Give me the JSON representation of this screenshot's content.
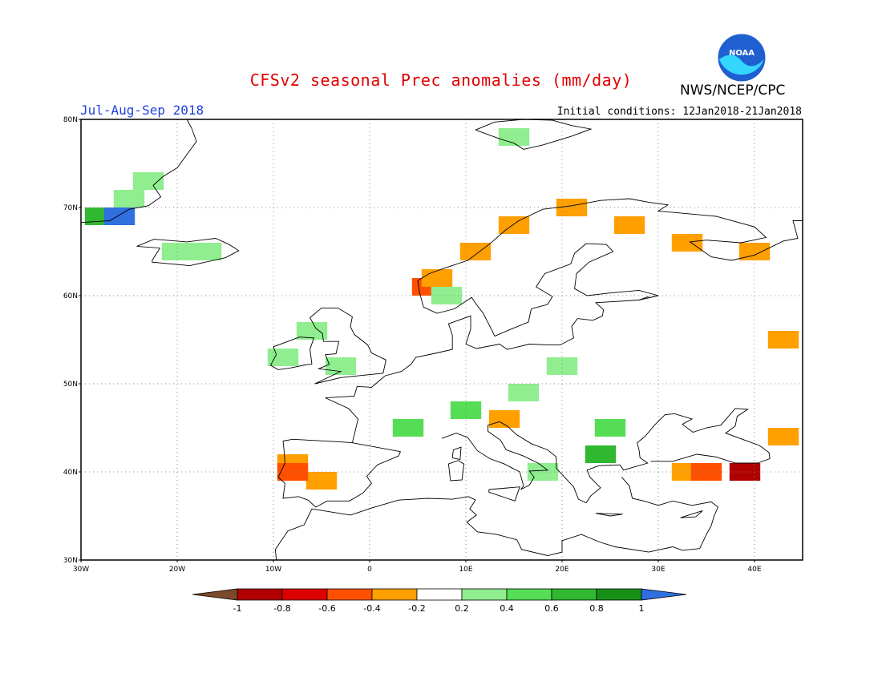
{
  "header": {
    "title": "CFSv2 seasonal Prec anomalies (mm/day)",
    "season": "Jul-Aug-Sep 2018",
    "initial_conditions": "Initial conditions: 12Jan2018-21Jan2018",
    "org": "NWS/NCEP/CPC",
    "logo_text": "NOAA"
  },
  "map": {
    "region": "Europe",
    "lon_range": [
      -30,
      45
    ],
    "lat_range": [
      30,
      80
    ],
    "lat_ticks": [
      "30N",
      "40N",
      "50N",
      "60N",
      "70N",
      "80N"
    ],
    "lon_ticks": [
      "30W",
      "20W",
      "10W",
      "0",
      "10E",
      "20E",
      "30E",
      "40E"
    ],
    "grid": "dotted"
  },
  "colorbar": {
    "labels": [
      "-1",
      "-0.8",
      "-0.6",
      "-0.4",
      "-0.2",
      "0.2",
      "0.4",
      "0.6",
      "0.8",
      "1"
    ],
    "colors": [
      "#7a4a2a",
      "#b00000",
      "#dd0000",
      "#ff5000",
      "#ff9f00",
      "#ffffff",
      "#90ee90",
      "#55dd55",
      "#30b830",
      "#189018",
      "#2f6fe0"
    ]
  },
  "chart_data": {
    "type": "heatmap",
    "title": "CFSv2 seasonal Prec anomalies (mm/day)",
    "units": "mm/day",
    "anomaly_cells": [
      {
        "lon": -25,
        "lat": 71,
        "value": 0.3
      },
      {
        "lon": -23,
        "lat": 73,
        "value": 0.3
      },
      {
        "lon": -28,
        "lat": 69,
        "value": 0.7
      },
      {
        "lon": -26,
        "lat": 69,
        "value": 1.1
      },
      {
        "lon": -20,
        "lat": 65,
        "value": 0.3
      },
      {
        "lon": -17,
        "lat": 65,
        "value": 0.3
      },
      {
        "lon": -6,
        "lat": 56,
        "value": 0.3
      },
      {
        "lon": -9,
        "lat": 53,
        "value": 0.3
      },
      {
        "lon": -3,
        "lat": 52,
        "value": 0.3
      },
      {
        "lon": 6,
        "lat": 61,
        "value": -0.5
      },
      {
        "lon": 7,
        "lat": 62,
        "value": -0.3
      },
      {
        "lon": 11,
        "lat": 65,
        "value": -0.3
      },
      {
        "lon": 15,
        "lat": 68,
        "value": -0.3
      },
      {
        "lon": 21,
        "lat": 70,
        "value": -0.3
      },
      {
        "lon": 27,
        "lat": 68,
        "value": -0.3
      },
      {
        "lon": 33,
        "lat": 66,
        "value": -0.3
      },
      {
        "lon": 40,
        "lat": 65,
        "value": -0.3
      },
      {
        "lon": 43,
        "lat": 55,
        "value": -0.3
      },
      {
        "lon": 15,
        "lat": 78,
        "value": 0.3
      },
      {
        "lon": 8,
        "lat": 60,
        "value": 0.3
      },
      {
        "lon": 16,
        "lat": 49,
        "value": 0.3
      },
      {
        "lon": 20,
        "lat": 52,
        "value": 0.3
      },
      {
        "lon": 10,
        "lat": 47,
        "value": 0.5
      },
      {
        "lon": 4,
        "lat": 45,
        "value": 0.5
      },
      {
        "lon": 25,
        "lat": 45,
        "value": 0.5
      },
      {
        "lon": 24,
        "lat": 42,
        "value": 0.7
      },
      {
        "lon": 18,
        "lat": 40,
        "value": 0.3
      },
      {
        "lon": -8,
        "lat": 41,
        "value": -0.3
      },
      {
        "lon": -5,
        "lat": 39,
        "value": -0.3
      },
      {
        "lon": -8,
        "lat": 40,
        "value": -0.5
      },
      {
        "lon": 33,
        "lat": 40,
        "value": -0.3
      },
      {
        "lon": 35,
        "lat": 40,
        "value": -0.5
      },
      {
        "lon": 39,
        "lat": 40,
        "value": -0.9
      },
      {
        "lon": 14,
        "lat": 46,
        "value": -0.3
      },
      {
        "lon": 43,
        "lat": 44,
        "value": -0.3
      }
    ]
  }
}
